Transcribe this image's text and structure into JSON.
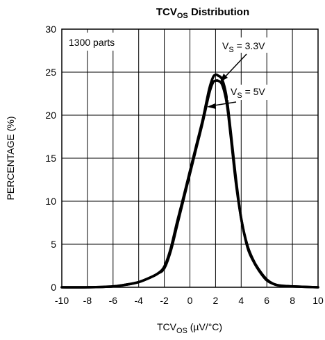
{
  "chart_data": {
    "type": "line",
    "title": {
      "main": "TCV",
      "sub": "OS",
      "rest": " Distribution"
    },
    "xlabel": {
      "main": "TCV",
      "sub": "OS",
      "rest": " (µV/°C)"
    },
    "ylabel": "PERCENTAGE (%)",
    "xlim": [
      -10,
      10
    ],
    "ylim": [
      0,
      30
    ],
    "x_ticks": [
      "-10",
      "-8",
      "-6",
      "-4",
      "-2",
      "0",
      "2",
      "4",
      "6",
      "8",
      "10"
    ],
    "y_ticks": [
      "0",
      "5",
      "10",
      "15",
      "20",
      "25",
      "30"
    ],
    "grid": true,
    "legend": "none",
    "annotations": {
      "parts": "1300 parts",
      "series_3v3": {
        "main": "V",
        "sub": "S",
        "rest": " = 3.3V"
      },
      "series_5v": {
        "main": "V",
        "sub": "S",
        "rest": " = 5V"
      }
    },
    "series": [
      {
        "name": "VS = 3.3V",
        "x": [
          -10,
          -8,
          -6,
          -5,
          -4,
          -3,
          -2.5,
          -2,
          -1.5,
          -1,
          -0.5,
          0,
          0.5,
          1,
          1.5,
          1.8,
          2,
          2.2,
          2.5,
          2.8,
          3,
          3.3,
          3.6,
          4,
          4.5,
          5,
          5.5,
          6,
          6.5,
          7,
          8,
          10
        ],
        "y": [
          0,
          0,
          0.1,
          0.3,
          0.6,
          1.2,
          1.6,
          2.4,
          4.5,
          7.6,
          10.5,
          13.5,
          16.5,
          19.5,
          23,
          24.4,
          24.7,
          24.6,
          24.2,
          22.6,
          20.5,
          16.5,
          12.5,
          8,
          4.8,
          3,
          1.8,
          0.9,
          0.4,
          0.2,
          0.1,
          0
        ]
      },
      {
        "name": "VS = 5V",
        "x": [
          -10,
          -8,
          -6,
          -5,
          -4,
          -3,
          -2.5,
          -2,
          -1.5,
          -1,
          -0.5,
          0,
          0.5,
          1,
          1.5,
          1.8,
          2,
          2.2,
          2.5,
          2.8,
          3,
          3.3,
          3.6,
          4,
          4.5,
          5,
          5.5,
          6,
          6.5,
          7,
          8,
          10
        ],
        "y": [
          0,
          0,
          0.1,
          0.3,
          0.6,
          1.2,
          1.6,
          2.2,
          4.2,
          7.2,
          10.2,
          13.2,
          16.2,
          19.2,
          22.5,
          23.8,
          24,
          24,
          23.6,
          22,
          20,
          16,
          12,
          8,
          4.6,
          2.9,
          1.7,
          0.8,
          0.4,
          0.2,
          0.1,
          0
        ]
      }
    ],
    "style": {
      "grid_color": "#000000",
      "line_color": "#000000",
      "text_color": "#000000"
    }
  }
}
